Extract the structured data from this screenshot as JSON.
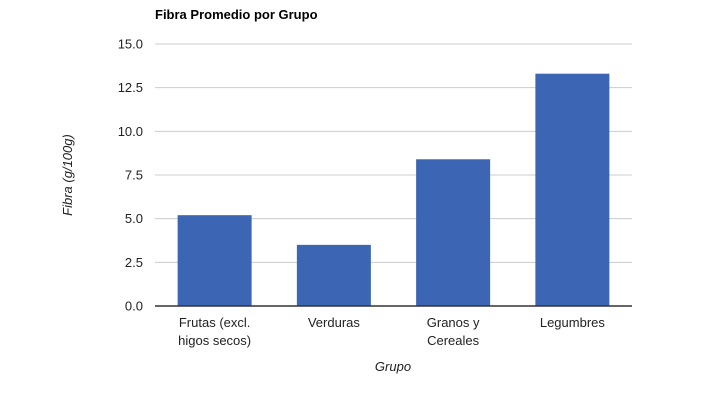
{
  "chart_data": {
    "type": "bar",
    "title": "Fibra Promedio por Grupo",
    "xlabel": "Grupo",
    "ylabel": "Fibra (g/100g)",
    "categories": [
      [
        "Frutas (excl.",
        "higos secos)"
      ],
      [
        "Verduras"
      ],
      [
        "Granos y",
        "Cereales"
      ],
      [
        "Legumbres"
      ]
    ],
    "values": [
      5.2,
      3.5,
      8.4,
      13.3
    ],
    "ylim": [
      0,
      15
    ],
    "yticks": [
      "0.0",
      "2.5",
      "5.0",
      "7.5",
      "10.0",
      "12.5",
      "15.0"
    ],
    "grid": true,
    "colors": {
      "bar": "#3c66b3",
      "grid": "#cccccc",
      "axis": "#333333"
    }
  }
}
